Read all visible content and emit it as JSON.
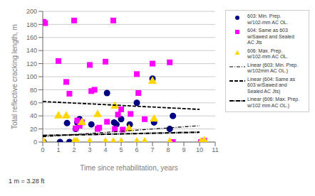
{
  "chart_data": {
    "type": "scatter",
    "x_label": "Time since rehabilitation, years",
    "y_label": "Total reflective cracking length, m",
    "annotations": [
      "1 m = 3.28 ft"
    ],
    "xlim": [
      0,
      11
    ],
    "ylim": [
      0,
      200
    ],
    "xticks": [
      0,
      1,
      2,
      3,
      4,
      5,
      6,
      7,
      8,
      9,
      10,
      11
    ],
    "yticks": [
      0,
      20,
      40,
      60,
      80,
      100,
      120,
      140,
      160,
      180,
      200
    ],
    "grid": "y",
    "legend": "upper right",
    "series": [
      {
        "name": "603: Min. Prep.\nw/102-mm AC OL.",
        "type": "scatter",
        "color": "#000080",
        "marker": "circle",
        "x": [
          0.05,
          1.1,
          1.55,
          1.7,
          2.1,
          2.2,
          2.35,
          3.1,
          4.1,
          4.55,
          4.7,
          5.0,
          5.55,
          6.0,
          7.0,
          7.1,
          8.1,
          8.3,
          10.1
        ],
        "values": [
          0,
          0,
          29,
          0,
          20,
          30,
          35,
          27,
          75,
          30,
          27,
          35,
          27,
          60,
          97,
          30,
          20,
          40,
          0
        ]
      },
      {
        "name": "604: Same as 603\nw/Sawed and Sealed\nAC Jts",
        "type": "scatter",
        "color": "#FF00FF",
        "marker": "square",
        "x": [
          0.05,
          0.15,
          1.0,
          1.5,
          1.7,
          2.0,
          2.1,
          2.2,
          2.35,
          2.5,
          3.0,
          3.1,
          3.3,
          3.5,
          3.6,
          4.0,
          4.1,
          4.5,
          4.6,
          4.8,
          5.0,
          5.1,
          5.6,
          6.0,
          6.1,
          6.5,
          7.0,
          8.1,
          8.3,
          10.1,
          10.3
        ],
        "values": [
          184,
          182,
          124,
          92,
          74,
          186,
          21,
          33,
          25,
          30,
          118,
          78,
          80,
          20,
          22,
          123,
          31,
          186,
          20,
          42,
          50,
          19,
          43,
          104,
          75,
          35,
          120,
          122,
          0,
          0,
          2
        ]
      },
      {
        "name": "606: Max. Prep.\nw/102-mm AC OL.",
        "type": "scatter",
        "color": "#FFD700",
        "marker": "triangle",
        "x": [
          1.0,
          1.5,
          2.5,
          3.5,
          4.6,
          5.5,
          7.0,
          7.1,
          0.05,
          2.0,
          2.1,
          2.2,
          3.0,
          4.0,
          4.5,
          5.0,
          6.0,
          6.5,
          8.1,
          10.1,
          10.3
        ],
        "values": [
          40,
          40,
          30,
          42,
          55,
          20,
          93,
          35,
          0,
          0,
          0,
          0,
          0,
          0,
          0,
          0,
          0,
          0,
          0,
          0,
          2
        ]
      },
      {
        "name": "Linear (603: Min. Prep.\nw/102mm AC OL.)",
        "type": "line",
        "color": "black",
        "line_style": "dashdot",
        "x": [
          0,
          10
        ],
        "values": [
          8,
          25
        ]
      },
      {
        "name": "Linear (604: Same as\n603 w/Sawed and\nSealed AC Jts)",
        "type": "line",
        "color": "black",
        "line_style": "dashed",
        "x": [
          0,
          10
        ],
        "values": [
          62,
          50
        ]
      },
      {
        "name": "Linear (606: Max. Prep.\nw/102 mm AC OL.)",
        "type": "line",
        "color": "black",
        "line_style": "dense_dashdot",
        "x": [
          0,
          10
        ],
        "values": [
          10,
          15
        ]
      }
    ]
  }
}
